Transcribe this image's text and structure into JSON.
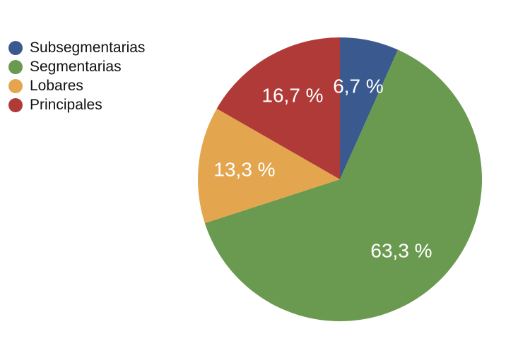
{
  "chart_data": {
    "type": "pie",
    "start": "top",
    "direction": "clockwise",
    "slices": [
      {
        "name": "Subsegmentarias",
        "value": 6.7,
        "label": "6,7 %",
        "color": "#3a5a8f"
      },
      {
        "name": "Segmentarias",
        "value": 63.3,
        "label": "63,3 %",
        "color": "#6a9a50"
      },
      {
        "name": "Lobares",
        "value": 13.3,
        "label": "13,3 %",
        "color": "#e3a64f"
      },
      {
        "name": "Principales",
        "value": 16.7,
        "label": "16,7 %",
        "color": "#b03a37"
      }
    ],
    "legend_position": "top-left"
  }
}
